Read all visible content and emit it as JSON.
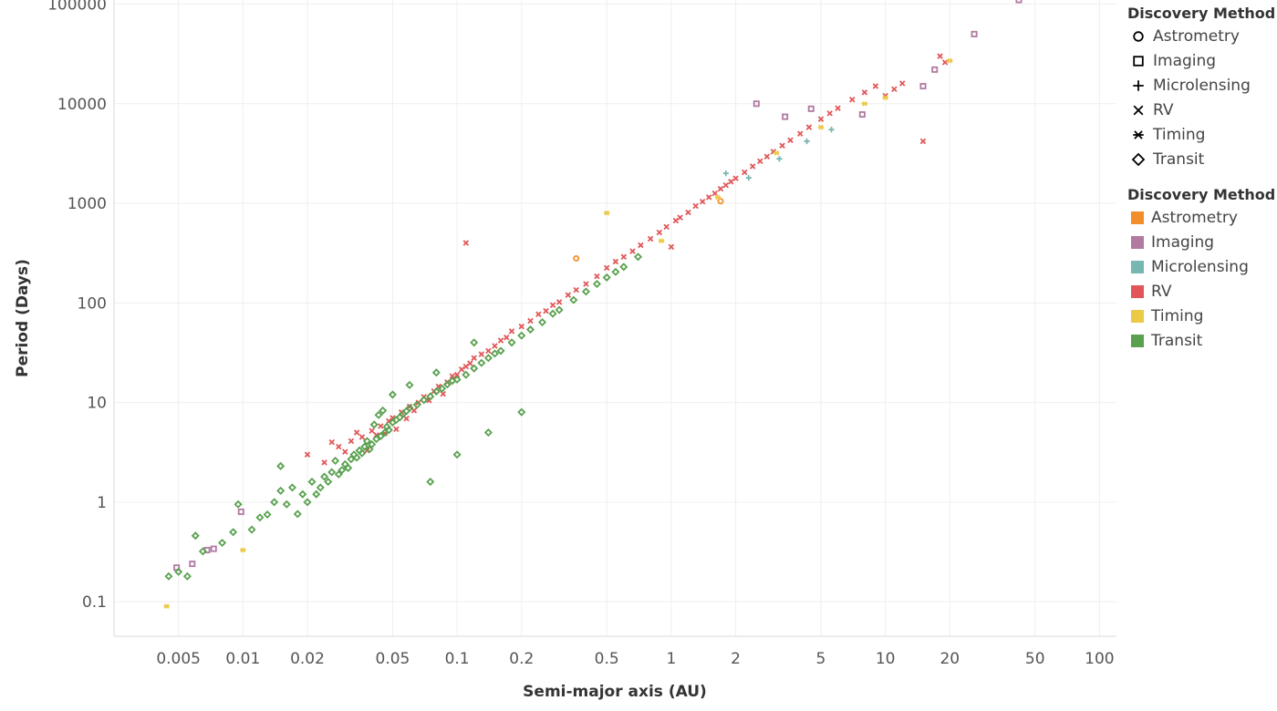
{
  "chart_data": {
    "type": "scatter",
    "xlabel": "Semi-major axis (AU)",
    "ylabel": "Period (Days)",
    "x_scale": "log",
    "y_scale": "log",
    "xlim": [
      0.0025,
      120
    ],
    "ylim": [
      0.045,
      110000
    ],
    "x_ticks": [
      {
        "value": 0.005,
        "label": "0.005"
      },
      {
        "value": 0.01,
        "label": "0.01"
      },
      {
        "value": 0.02,
        "label": "0.02"
      },
      {
        "value": 0.05,
        "label": "0.05"
      },
      {
        "value": 0.1,
        "label": "0.1"
      },
      {
        "value": 0.2,
        "label": "0.2"
      },
      {
        "value": 0.5,
        "label": "0.5"
      },
      {
        "value": 1,
        "label": "1"
      },
      {
        "value": 2,
        "label": "2"
      },
      {
        "value": 5,
        "label": "5"
      },
      {
        "value": 10,
        "label": "10"
      },
      {
        "value": 20,
        "label": "20"
      },
      {
        "value": 50,
        "label": "50"
      },
      {
        "value": 100,
        "label": "100"
      }
    ],
    "y_ticks": [
      {
        "value": 0.1,
        "label": "0.1"
      },
      {
        "value": 1,
        "label": "1"
      },
      {
        "value": 10,
        "label": "10"
      },
      {
        "value": 100,
        "label": "100"
      },
      {
        "value": 1000,
        "label": "1000"
      },
      {
        "value": 10000,
        "label": "10000"
      },
      {
        "value": 100000,
        "label": "100000"
      }
    ],
    "grid": true,
    "legend_position": "right",
    "series": [
      {
        "name": "Astrometry",
        "shape": "circle",
        "color": "#F28E2B",
        "points": [
          [
            0.36,
            280
          ],
          [
            1.7,
            1050
          ]
        ]
      },
      {
        "name": "Imaging",
        "shape": "square",
        "color": "#B07AA1",
        "points": [
          [
            0.0049,
            0.22
          ],
          [
            0.0058,
            0.24
          ],
          [
            0.0068,
            0.33
          ],
          [
            0.0073,
            0.34
          ],
          [
            0.0098,
            0.8
          ],
          [
            2.5,
            10000
          ],
          [
            3.4,
            7400
          ],
          [
            4.5,
            8900
          ],
          [
            7.8,
            7800
          ],
          [
            15,
            15000
          ],
          [
            17,
            22000
          ],
          [
            26,
            50000
          ],
          [
            42,
            110000
          ]
        ]
      },
      {
        "name": "Microlensing",
        "shape": "plus",
        "color": "#76B7B2",
        "points": [
          [
            1.8,
            2000
          ],
          [
            2.3,
            1800
          ],
          [
            3.2,
            2800
          ],
          [
            4.3,
            4200
          ],
          [
            5.6,
            5500
          ]
        ]
      },
      {
        "name": "RV",
        "shape": "cross",
        "color": "#E15759",
        "points": [
          [
            0.02,
            3.0
          ],
          [
            0.024,
            2.5
          ],
          [
            0.026,
            4.0
          ],
          [
            0.028,
            3.6
          ],
          [
            0.03,
            3.2
          ],
          [
            0.032,
            4.1
          ],
          [
            0.034,
            5.0
          ],
          [
            0.036,
            4.5
          ],
          [
            0.038,
            3.3
          ],
          [
            0.04,
            5.2
          ],
          [
            0.042,
            4.7
          ],
          [
            0.044,
            5.8
          ],
          [
            0.046,
            4.9
          ],
          [
            0.048,
            6.5
          ],
          [
            0.05,
            7.0
          ],
          [
            0.052,
            5.4
          ],
          [
            0.055,
            8.0
          ],
          [
            0.058,
            6.9
          ],
          [
            0.06,
            9.1
          ],
          [
            0.063,
            8.3
          ],
          [
            0.066,
            10.0
          ],
          [
            0.07,
            11.4
          ],
          [
            0.074,
            10.5
          ],
          [
            0.078,
            13.0
          ],
          [
            0.082,
            14.5
          ],
          [
            0.086,
            12.2
          ],
          [
            0.09,
            16.0
          ],
          [
            0.095,
            18.4
          ],
          [
            0.1,
            19.0
          ],
          [
            0.105,
            21.5
          ],
          [
            0.11,
            23.0
          ],
          [
            0.11,
            400
          ],
          [
            0.115,
            24.7
          ],
          [
            0.12,
            28.0
          ],
          [
            0.13,
            30.5
          ],
          [
            0.14,
            33.0
          ],
          [
            0.15,
            37.0
          ],
          [
            0.16,
            42.0
          ],
          [
            0.17,
            45.0
          ],
          [
            0.18,
            52.0
          ],
          [
            0.2,
            58.0
          ],
          [
            0.22,
            66.0
          ],
          [
            0.24,
            77.0
          ],
          [
            0.26,
            83.0
          ],
          [
            0.28,
            95.0
          ],
          [
            0.3,
            102.0
          ],
          [
            0.33,
            120.0
          ],
          [
            0.36,
            135.0
          ],
          [
            0.4,
            155.0
          ],
          [
            0.45,
            185.0
          ],
          [
            0.5,
            225.0
          ],
          [
            0.55,
            260.0
          ],
          [
            0.6,
            290.0
          ],
          [
            0.66,
            330.0
          ],
          [
            0.72,
            380.0
          ],
          [
            0.8,
            440.0
          ],
          [
            0.88,
            510.0
          ],
          [
            0.95,
            580.0
          ],
          [
            1.0,
            365.0
          ],
          [
            1.05,
            670.0
          ],
          [
            1.1,
            720.0
          ],
          [
            1.2,
            810.0
          ],
          [
            1.3,
            940.0
          ],
          [
            1.4,
            1040.0
          ],
          [
            1.5,
            1150.0
          ],
          [
            1.6,
            1260.0
          ],
          [
            1.7,
            1400.0
          ],
          [
            1.8,
            1520.0
          ],
          [
            1.9,
            1650.0
          ],
          [
            2.0,
            1780.0
          ],
          [
            2.2,
            2050.0
          ],
          [
            2.4,
            2350.0
          ],
          [
            2.6,
            2650.0
          ],
          [
            2.8,
            2950.0
          ],
          [
            3.0,
            3300.0
          ],
          [
            3.3,
            3800.0
          ],
          [
            3.6,
            4300.0
          ],
          [
            4.0,
            5000.0
          ],
          [
            4.4,
            5800.0
          ],
          [
            5.0,
            7000.0
          ],
          [
            5.5,
            8000.0
          ],
          [
            6.0,
            9000.0
          ],
          [
            7.0,
            11000.0
          ],
          [
            8.0,
            13000.0
          ],
          [
            9.0,
            15000.0
          ],
          [
            10.0,
            12000.0
          ],
          [
            11.0,
            14000.0
          ],
          [
            12.0,
            16000.0
          ],
          [
            15,
            4200.0
          ],
          [
            18,
            30000.0
          ],
          [
            19,
            26000.0
          ]
        ]
      },
      {
        "name": "Timing",
        "shape": "asterisk",
        "color": "#EDC948",
        "points": [
          [
            0.0044,
            0.09
          ],
          [
            0.01,
            0.33
          ],
          [
            0.5,
            800
          ],
          [
            0.9,
            420
          ],
          [
            1.65,
            1150
          ],
          [
            3.1,
            3200
          ],
          [
            5.0,
            5800
          ],
          [
            8.0,
            10000
          ],
          [
            10,
            11500
          ],
          [
            20,
            27000
          ]
        ]
      },
      {
        "name": "Transit",
        "shape": "diamond",
        "color": "#59A14F",
        "points": [
          [
            0.0045,
            0.18
          ],
          [
            0.005,
            0.2
          ],
          [
            0.0055,
            0.18
          ],
          [
            0.006,
            0.46
          ],
          [
            0.0065,
            0.32
          ],
          [
            0.008,
            0.39
          ],
          [
            0.009,
            0.5
          ],
          [
            0.0095,
            0.95
          ],
          [
            0.011,
            0.53
          ],
          [
            0.012,
            0.7
          ],
          [
            0.013,
            0.75
          ],
          [
            0.014,
            1.0
          ],
          [
            0.015,
            2.3
          ],
          [
            0.015,
            1.3
          ],
          [
            0.016,
            0.95
          ],
          [
            0.017,
            1.4
          ],
          [
            0.018,
            0.76
          ],
          [
            0.019,
            1.2
          ],
          [
            0.02,
            1.0
          ],
          [
            0.021,
            1.6
          ],
          [
            0.022,
            1.2
          ],
          [
            0.023,
            1.4
          ],
          [
            0.024,
            1.8
          ],
          [
            0.025,
            1.6
          ],
          [
            0.026,
            2.0
          ],
          [
            0.027,
            2.6
          ],
          [
            0.028,
            1.9
          ],
          [
            0.029,
            2.1
          ],
          [
            0.03,
            2.4
          ],
          [
            0.031,
            2.2
          ],
          [
            0.032,
            2.7
          ],
          [
            0.033,
            3.0
          ],
          [
            0.034,
            2.8
          ],
          [
            0.035,
            3.3
          ],
          [
            0.036,
            3.1
          ],
          [
            0.037,
            3.6
          ],
          [
            0.038,
            4.1
          ],
          [
            0.039,
            3.4
          ],
          [
            0.04,
            3.8
          ],
          [
            0.041,
            6.0
          ],
          [
            0.042,
            4.3
          ],
          [
            0.043,
            7.5
          ],
          [
            0.044,
            4.6
          ],
          [
            0.045,
            8.3
          ],
          [
            0.046,
            5.0
          ],
          [
            0.047,
            5.7
          ],
          [
            0.048,
            5.3
          ],
          [
            0.05,
            6.3
          ],
          [
            0.052,
            6.7
          ],
          [
            0.054,
            7.1
          ],
          [
            0.056,
            7.7
          ],
          [
            0.058,
            8.2
          ],
          [
            0.06,
            8.8
          ],
          [
            0.065,
            9.5
          ],
          [
            0.07,
            10.6
          ],
          [
            0.075,
            11.5
          ],
          [
            0.08,
            12.9
          ],
          [
            0.085,
            13.8
          ],
          [
            0.09,
            15.2
          ],
          [
            0.095,
            16.5
          ],
          [
            0.1,
            17.0
          ],
          [
            0.1,
            3.0
          ],
          [
            0.11,
            19.0
          ],
          [
            0.12,
            22.0
          ],
          [
            0.13,
            25.0
          ],
          [
            0.14,
            28.0
          ],
          [
            0.14,
            5.0
          ],
          [
            0.15,
            31.0
          ],
          [
            0.16,
            33.0
          ],
          [
            0.18,
            40.0
          ],
          [
            0.2,
            47.0
          ],
          [
            0.2,
            8.0
          ],
          [
            0.22,
            54.0
          ],
          [
            0.25,
            64.0
          ],
          [
            0.28,
            78.0
          ],
          [
            0.3,
            85.0
          ],
          [
            0.35,
            107.0
          ],
          [
            0.4,
            130.0
          ],
          [
            0.45,
            155.0
          ],
          [
            0.5,
            180.0
          ],
          [
            0.55,
            205.0
          ],
          [
            0.6,
            230.0
          ],
          [
            0.7,
            290.0
          ],
          [
            0.075,
            1.6
          ],
          [
            0.06,
            15.0
          ],
          [
            0.05,
            12.0
          ],
          [
            0.12,
            40.0
          ],
          [
            0.08,
            20.0
          ]
        ]
      }
    ]
  },
  "legends": {
    "shape_title": "Discovery Method",
    "color_title": "Discovery Method",
    "items": [
      {
        "label": "Astrometry",
        "shape": "circle",
        "color": "#F28E2B"
      },
      {
        "label": "Imaging",
        "shape": "square",
        "color": "#B07AA1"
      },
      {
        "label": "Microlensing",
        "shape": "plus",
        "color": "#76B7B2"
      },
      {
        "label": "RV",
        "shape": "cross",
        "color": "#E15759"
      },
      {
        "label": "Timing",
        "shape": "asterisk",
        "color": "#EDC948"
      },
      {
        "label": "Transit",
        "shape": "diamond",
        "color": "#59A14F"
      }
    ]
  }
}
